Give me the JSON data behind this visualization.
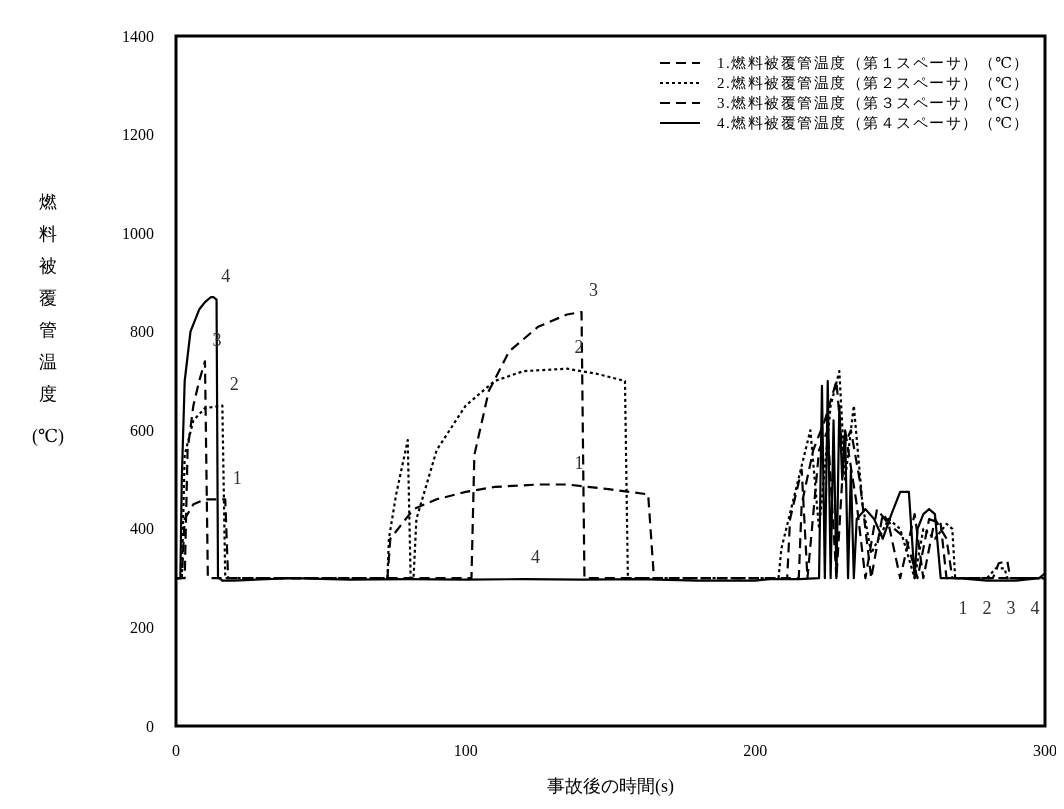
{
  "chart_data": {
    "type": "line",
    "xlabel": "事故後の時間(s)",
    "ylabel": "燃料被覆管温度(℃)",
    "xlim": [
      0,
      300
    ],
    "xticks": [
      0,
      100,
      200,
      300
    ],
    "ylim": [
      0,
      1400
    ],
    "yticks": [
      0,
      200,
      400,
      600,
      800,
      1000,
      1200,
      1400
    ],
    "grid": false,
    "legend": "top right",
    "marker": "none",
    "series": [
      {
        "name": "1.燃料被覆管温度（第１スペーサ）（℃）",
        "color": "#000000",
        "line_style": "dashed",
        "x": [
          0,
          2,
          3,
          6,
          10,
          17,
          18,
          73,
          74,
          78,
          82,
          90,
          100,
          110,
          125,
          135,
          150,
          163,
          165,
          211,
          212,
          216,
          218,
          222,
          225,
          228,
          231,
          235,
          238,
          242,
          246,
          250,
          255,
          258,
          262,
          266,
          268,
          300
        ],
        "values": [
          300,
          300,
          420,
          450,
          460,
          460,
          300,
          300,
          380,
          410,
          440,
          460,
          475,
          485,
          490,
          490,
          480,
          470,
          300,
          300,
          420,
          520,
          300,
          560,
          600,
          300,
          600,
          450,
          300,
          440,
          410,
          300,
          430,
          300,
          420,
          380,
          300,
          300
        ]
      },
      {
        "name": "2.燃料被覆管温度（第２スペーサ）（℃）",
        "color": "#000000",
        "line_style": "dotted",
        "x": [
          0,
          2,
          3,
          6,
          10,
          16,
          17,
          73,
          73.5,
          76,
          80,
          81,
          82,
          83,
          90,
          100,
          110,
          120,
          135,
          145,
          155,
          156,
          208,
          209,
          214,
          219,
          222,
          226,
          229,
          231,
          234,
          237,
          240,
          246,
          250,
          255,
          258,
          262,
          266,
          268,
          269,
          280,
          283,
          286,
          287,
          300
        ],
        "values": [
          300,
          300,
          550,
          620,
          645,
          650,
          300,
          300,
          380,
          470,
          580,
          300,
          300,
          420,
          560,
          650,
          700,
          720,
          725,
          715,
          700,
          300,
          300,
          360,
          480,
          600,
          400,
          650,
          720,
          500,
          650,
          450,
          350,
          420,
          400,
          300,
          400,
          380,
          410,
          400,
          300,
          300,
          320,
          320,
          300,
          300
        ]
      },
      {
        "name": "3.燃料被覆管温度（第３スペーサ）（℃）",
        "color": "#000000",
        "line_style": "dashed",
        "x": [
          0,
          3,
          4,
          6,
          8,
          10,
          11,
          100,
          102,
          103,
          108,
          115,
          125,
          135,
          140,
          141,
          215,
          216,
          220,
          224,
          228,
          230,
          233,
          236,
          240,
          244,
          248,
          252,
          256,
          260,
          264,
          266,
          282,
          284,
          287,
          288,
          300
        ],
        "values": [
          300,
          300,
          560,
          650,
          700,
          740,
          300,
          300,
          300,
          550,
          680,
          760,
          810,
          835,
          840,
          300,
          300,
          450,
          560,
          620,
          700,
          560,
          600,
          500,
          300,
          430,
          400,
          380,
          300,
          420,
          410,
          300,
          300,
          330,
          335,
          300,
          300
        ]
      },
      {
        "name": "4.燃料被覆管温度（第４スペーサ）（℃）",
        "color": "#000000",
        "line_style": "solid",
        "x": [
          0,
          1.5,
          2,
          3,
          5,
          8,
          10,
          12,
          13,
          14,
          14.5,
          15,
          16,
          20,
          40,
          60,
          80,
          100,
          120,
          140,
          160,
          180,
          200,
          205,
          215,
          222,
          223,
          224,
          225,
          226,
          227,
          228,
          229,
          230,
          231,
          232,
          233,
          234,
          235,
          238,
          241,
          244,
          247,
          250,
          253,
          255,
          256,
          258,
          260,
          262,
          264,
          266,
          270,
          280,
          290,
          298,
          300
        ],
        "values": [
          300,
          300,
          500,
          700,
          800,
          845,
          860,
          870,
          870,
          865,
          300,
          300,
          295,
          295,
          300,
          297,
          298,
          297,
          298,
          297,
          298,
          295,
          295,
          298,
          298,
          300,
          690,
          300,
          700,
          300,
          620,
          300,
          650,
          500,
          600,
          300,
          520,
          300,
          420,
          440,
          420,
          380,
          430,
          475,
          475,
          300,
          400,
          430,
          440,
          430,
          300,
          300,
          300,
          295,
          295,
          300,
          310
        ]
      }
    ],
    "annotations": [
      {
        "text": "4",
        "x": 13,
        "y": 870
      },
      {
        "text": "3",
        "x": 10,
        "y": 740
      },
      {
        "text": "2",
        "x": 16,
        "y": 650
      },
      {
        "text": "1",
        "x": 17,
        "y": 460
      },
      {
        "text": "3",
        "x": 140,
        "y": 840
      },
      {
        "text": "2",
        "x": 135,
        "y": 725
      },
      {
        "text": "1",
        "x": 135,
        "y": 490
      },
      {
        "text": "4",
        "x": 120,
        "y": 298
      },
      "1",
      "2",
      "3",
      "4"
    ]
  }
}
